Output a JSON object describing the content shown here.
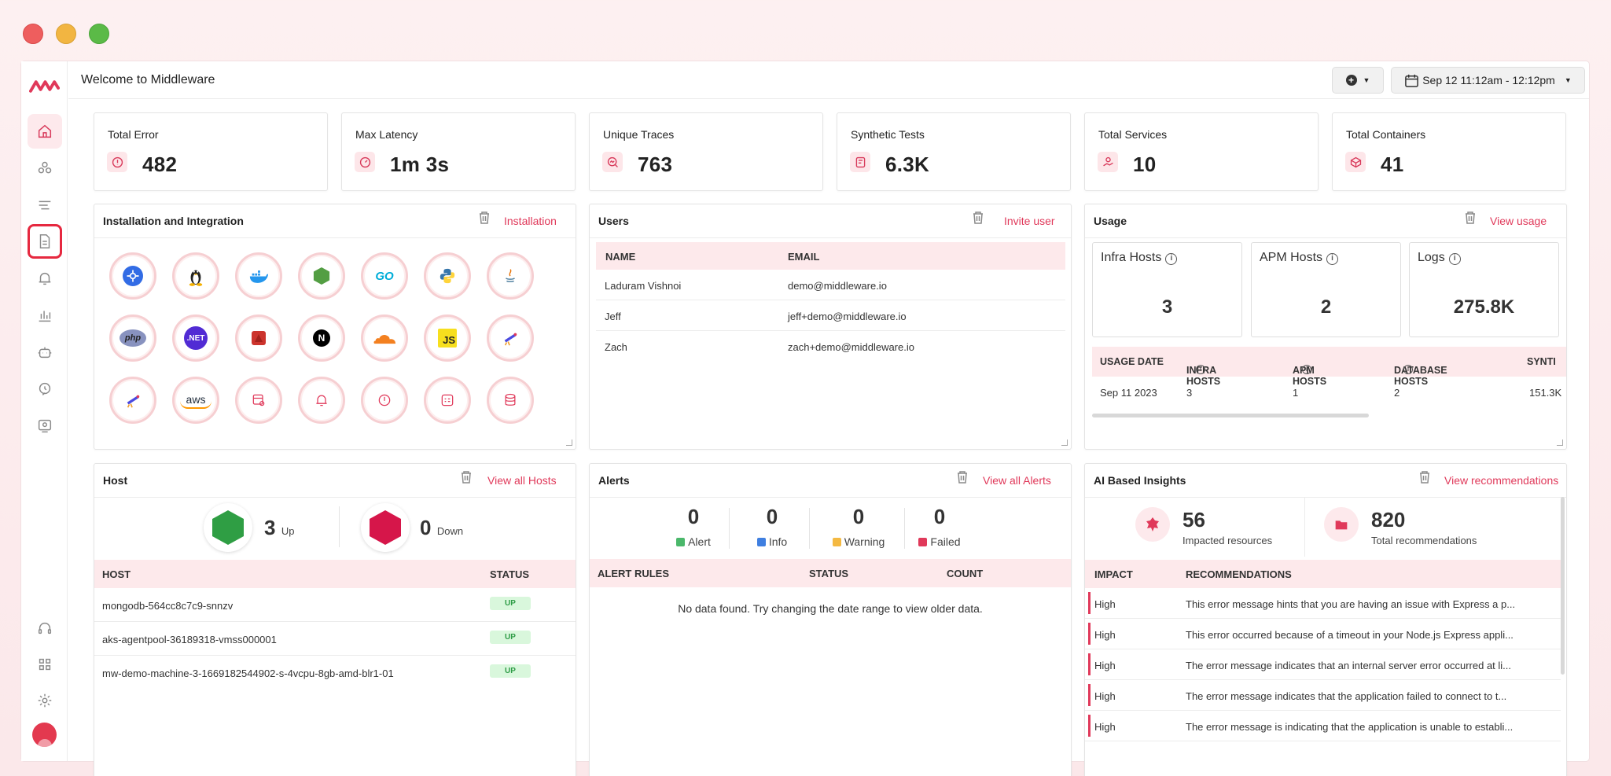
{
  "window": {
    "title": "Welcome to Middleware",
    "colors": {
      "close": "#ee5e5e",
      "minimize": "#f2b541",
      "maximize": "#5bba47",
      "accent": "#e0395a"
    }
  },
  "sidebar": {
    "items": [
      {
        "name": "home-icon",
        "active": true
      },
      {
        "name": "infrastructure-icon"
      },
      {
        "name": "logs-icon"
      },
      {
        "name": "document-icon",
        "outlined": true
      },
      {
        "name": "bell-icon"
      },
      {
        "name": "dashboard-chart-icon"
      },
      {
        "name": "robot-icon"
      },
      {
        "name": "ai-insights-icon"
      },
      {
        "name": "user-monitor-icon"
      }
    ],
    "bottom": [
      {
        "name": "headset-icon"
      },
      {
        "name": "apps-grid-icon"
      },
      {
        "name": "settings-icon"
      }
    ]
  },
  "topbar": {
    "add_icon": "plus-circle-icon",
    "date_range": "Sep 12 11:12am - 12:12pm"
  },
  "stats": [
    {
      "label": "Total Error",
      "value": "482",
      "icon": "error-icon"
    },
    {
      "label": "Max Latency",
      "value": "1m 3s",
      "icon": "speedometer-icon"
    },
    {
      "label": "Unique Traces",
      "value": "763",
      "icon": "trace-search-icon"
    },
    {
      "label": "Synthetic Tests",
      "value": "6.3K",
      "icon": "synthetic-test-icon"
    },
    {
      "label": "Total Services",
      "value": "10",
      "icon": "service-icon"
    },
    {
      "label": "Total Containers",
      "value": "41",
      "icon": "container-icon"
    }
  ],
  "installation": {
    "title": "Installation and Integration",
    "link": "Installation",
    "items": [
      "kubernetes-icon",
      "linux-icon",
      "docker-icon",
      "nodejs-icon",
      "go-icon",
      "python-icon",
      "java-icon",
      "php-icon",
      "dotnet-icon",
      "ruby-icon",
      "nextjs-icon",
      "cloudflare-icon",
      "javascript-icon",
      "telescope-icon",
      "telescope-icon",
      "aws-icon",
      "database-monitor-icon",
      "alert-bell-icon",
      "error-icon",
      "log-icon",
      "database-icon"
    ],
    "labels": {
      "go": "GO",
      "php": "php",
      "dotnet": ".NET",
      "nextjs": "N",
      "js": "JS",
      "aws": "aws"
    }
  },
  "users": {
    "title": "Users",
    "link": "Invite user",
    "headers": [
      "NAME",
      "EMAIL"
    ],
    "rows": [
      {
        "name": "Laduram Vishnoi",
        "email": "demo@middleware.io"
      },
      {
        "name": "Jeff",
        "email": "jeff+demo@middleware.io"
      },
      {
        "name": "Zach",
        "email": "zach+demo@middleware.io"
      }
    ]
  },
  "usage": {
    "title": "Usage",
    "link": "View usage",
    "boxes": [
      {
        "label": "Infra Hosts",
        "value": "3"
      },
      {
        "label": "APM Hosts",
        "value": "2"
      },
      {
        "label": "Logs",
        "value": "275.8K"
      }
    ],
    "headers": [
      "USAGE DATE",
      "INFRA HOSTS",
      "APM HOSTS",
      "DATABASE HOSTS",
      "SYNTI"
    ],
    "rows": [
      {
        "date": "Sep 11 2023",
        "infra": "3",
        "apm": "1",
        "db": "2",
        "synth": "151.3K"
      }
    ]
  },
  "host": {
    "title": "Host",
    "link": "View all Hosts",
    "up_count": "3",
    "up_label": "Up",
    "down_count": "0",
    "down_label": "Down",
    "headers": [
      "HOST",
      "STATUS"
    ],
    "rows": [
      {
        "host": "mongodb-564cc8c7c9-snnzv",
        "status": "UP"
      },
      {
        "host": "aks-agentpool-36189318-vmss000001",
        "status": "UP"
      },
      {
        "host": "mw-demo-machine-3-1669182544902-s-4vcpu-8gb-amd-blr1-01",
        "status": "UP"
      }
    ],
    "colors": {
      "up": "#2f9e44",
      "down": "#d6164a"
    }
  },
  "alerts": {
    "title": "Alerts",
    "link": "View all Alerts",
    "counts": [
      {
        "value": "0",
        "label": "Alert",
        "color": "#4bb86b"
      },
      {
        "value": "0",
        "label": "Info",
        "color": "#3f7fe0"
      },
      {
        "value": "0",
        "label": "Warning",
        "color": "#f4b942"
      },
      {
        "value": "0",
        "label": "Failed",
        "color": "#e0395a"
      }
    ],
    "headers": [
      "ALERT RULES",
      "STATUS",
      "COUNT"
    ],
    "empty": "No data found. Try changing the date range to view older data."
  },
  "insights": {
    "title": "AI Based Insights",
    "link": "View recommendations",
    "impacted_value": "56",
    "impacted_label": "Impacted resources",
    "recs_value": "820",
    "recs_label": "Total recommendations",
    "headers": [
      "IMPACT",
      "RECOMMENDATIONS"
    ],
    "rows": [
      {
        "impact": "High",
        "text": "This error message hints that you are having an issue with Express a p..."
      },
      {
        "impact": "High",
        "text": "This error occurred because of a timeout in your Node.js Express appli..."
      },
      {
        "impact": "High",
        "text": "The error message indicates that an internal server error occurred at li..."
      },
      {
        "impact": "High",
        "text": "The error message indicates that the application failed to connect to t..."
      },
      {
        "impact": "High",
        "text": "The error message is indicating that the application is unable to establi..."
      }
    ]
  }
}
